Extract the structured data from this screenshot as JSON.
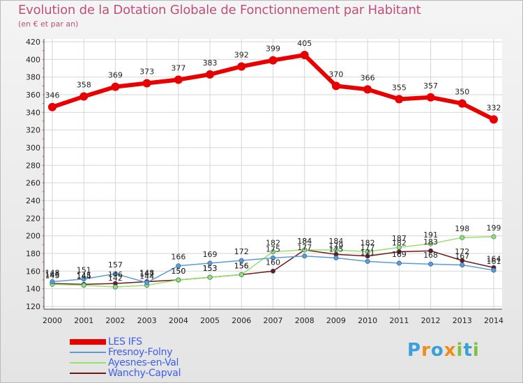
{
  "chart_data": {
    "type": "line",
    "title": "Evolution de la Dotation Globale de Fonctionnement par Habitant",
    "subtitle": "(en € et par an)",
    "xlabel": "",
    "ylabel": "",
    "ylim": [
      120,
      420
    ],
    "yticks": [
      120,
      140,
      160,
      180,
      200,
      220,
      240,
      260,
      280,
      300,
      320,
      340,
      360,
      380,
      400,
      420
    ],
    "x": [
      "2000",
      "2001",
      "2002",
      "2003",
      "2004",
      "2005",
      "2006",
      "2007",
      "2008",
      "2009",
      "2010",
      "2011",
      "2012",
      "2013",
      "2014"
    ],
    "grid": true,
    "series": [
      {
        "name": "LES IFS",
        "values": [
          346,
          358,
          369,
          373,
          377,
          383,
          392,
          399,
          405,
          370,
          366,
          355,
          357,
          350,
          332
        ],
        "color": "#e80000",
        "labels": [
          "346",
          "358",
          "369",
          "373",
          "377",
          "383",
          "392",
          "399",
          "405",
          "370",
          "366",
          "355",
          "357",
          "350",
          "332"
        ]
      },
      {
        "name": "Fresnoy-Folny",
        "values": [
          148,
          151,
          157,
          147,
          166,
          169,
          172,
          175,
          177,
          175,
          171,
          169,
          168,
          167,
          161
        ],
        "color": "#5b9bd5",
        "labels": [
          "148",
          "151",
          "157",
          "147",
          "166",
          "169",
          "172",
          "175",
          "177",
          "175",
          "171",
          "169",
          "168",
          "167",
          "161"
        ]
      },
      {
        "name": "Ayesnes-en-Val",
        "values": [
          145,
          144,
          142,
          144,
          150,
          153,
          156,
          182,
          184,
          184,
          182,
          187,
          191,
          198,
          199
        ],
        "color": "#97e06a",
        "labels": [
          "145",
          "144",
          "142",
          "144",
          "150",
          "153",
          "156",
          "182",
          "184",
          "184",
          "182",
          "187",
          "191",
          "198",
          "199"
        ]
      },
      {
        "name": "Wanchy-Capval",
        "values": [
          146,
          145,
          146,
          148,
          150,
          153,
          156,
          160,
          184,
          179,
          177,
          182,
          183,
          172,
          164
        ],
        "color": "#6e1818",
        "labels": [
          "146",
          "145",
          "146",
          "148",
          "150",
          "153",
          "156",
          "160",
          "184",
          "179",
          "177",
          "182",
          "183",
          "172",
          "164"
        ]
      }
    ]
  },
  "legend": {
    "items": [
      "LES IFS",
      "Fresnoy-Folny",
      "Ayesnes-en-Val",
      "Wanchy-Capval"
    ]
  },
  "logo": {
    "letters": [
      "P",
      "r",
      "o",
      "x",
      "i",
      "t",
      "i"
    ],
    "colors": [
      "#3aa0d8",
      "#f08c1a",
      "#3aa0d8",
      "#f08c1a",
      "#7dc242",
      "#3aa0d8",
      "#7dc242"
    ]
  }
}
